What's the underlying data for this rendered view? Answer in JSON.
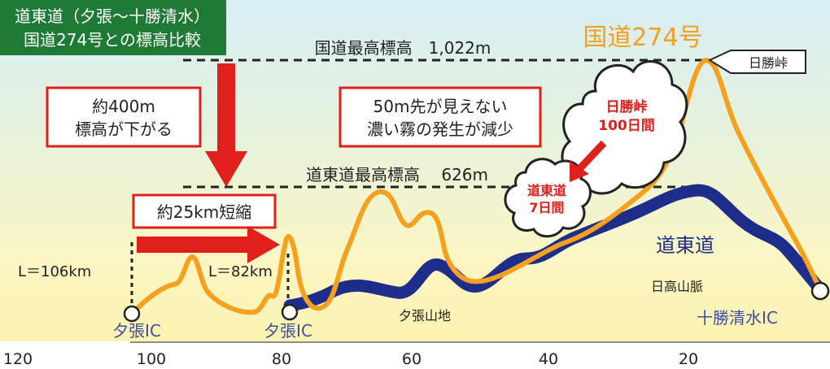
{
  "title": {
    "line1": "道東道（夕張～十勝清水）",
    "line2": "国道274号との標高比較"
  },
  "reference_lines": {
    "route274_max": "国道最高標高　1,022m",
    "doto_max": "道東道最高標高　 626m"
  },
  "callouts": {
    "elevation_drop": [
      "約400m",
      "標高が下がる"
    ],
    "fog_reduction": [
      "50m先が見えない",
      "濃い霧の発生が減少"
    ],
    "distance_cut": "約25km短縮"
  },
  "fog_days": {
    "route274": [
      "日勝峠",
      "100日間"
    ],
    "doto": [
      "道東道",
      "7日間"
    ]
  },
  "route_labels": {
    "route274": "国道274号",
    "doto": "道東道",
    "pass": "日勝峠"
  },
  "distances": {
    "route274": "L＝106km",
    "doto": "L＝82km"
  },
  "places": {
    "yubari_ic_274": "夕張IC",
    "yubari_ic_doto": "夕張IC",
    "tokachi_shimizu_ic": "十勝清水IC",
    "yubari_mountains": "夕張山地",
    "hidaka_mountains": "日高山脈"
  },
  "axis": {
    "ticks": [
      "120",
      "100",
      "80",
      "60",
      "40",
      "20"
    ]
  },
  "colors": {
    "route274": "#f5a01e",
    "doto": "#1e2c8a",
    "title_bg": "#1f7a35",
    "accent_red": "#e0201b"
  }
}
